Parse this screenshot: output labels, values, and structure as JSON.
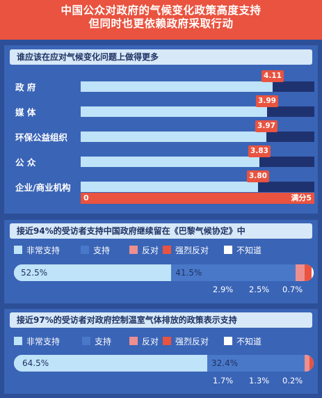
{
  "header": {
    "line1": "中国公众对政府的气候变化政策高度支持",
    "line2": "但同时也更依赖政府采取行动"
  },
  "colors": {
    "header": "#e9533f",
    "background": "#2d4f98",
    "very_support": "#bfe3f8",
    "support": "#4a78c8",
    "oppose": "#ee8f8f",
    "strongly_oppose": "#e9533f",
    "dont_know": "#ffffff"
  },
  "chart_data": [
    {
      "type": "bar",
      "title": "谁应该在应对气候变化问题上做得更多",
      "categories": [
        "政 府",
        "媒 体",
        "环保公益组织",
        "公 众",
        "企业/商业机构"
      ],
      "values": [
        4.11,
        3.99,
        3.97,
        3.83,
        3.8
      ],
      "value_labels": [
        "4.11",
        "3.99",
        "3.97",
        "3.83",
        "3.80"
      ],
      "axis_min_label": "0",
      "axis_max_label": "满分5",
      "xlim": [
        0,
        5
      ]
    },
    {
      "type": "bar",
      "title": "接近94%的受访者支持中国政府继续留在《巴黎气候协定》中",
      "legend": [
        "非常支持",
        "支持",
        "反对",
        "强烈反对",
        "不知道"
      ],
      "values": [
        52.5,
        41.5,
        2.9,
        2.5,
        0.7
      ],
      "labels": [
        "52.5%",
        "41.5%",
        "2.9%",
        "2.5%",
        "0.7%"
      ]
    },
    {
      "type": "bar",
      "title": "接近97%的受访者对政府控制温室气体排放的政策表示支持",
      "legend": [
        "非常支持",
        "支持",
        "反对",
        "强烈反对",
        "不知道"
      ],
      "values": [
        64.5,
        32.4,
        1.7,
        1.3,
        0.2
      ],
      "labels": [
        "64.5%",
        "32.4%",
        "1.7%",
        "1.3%",
        "0.2%"
      ]
    }
  ]
}
